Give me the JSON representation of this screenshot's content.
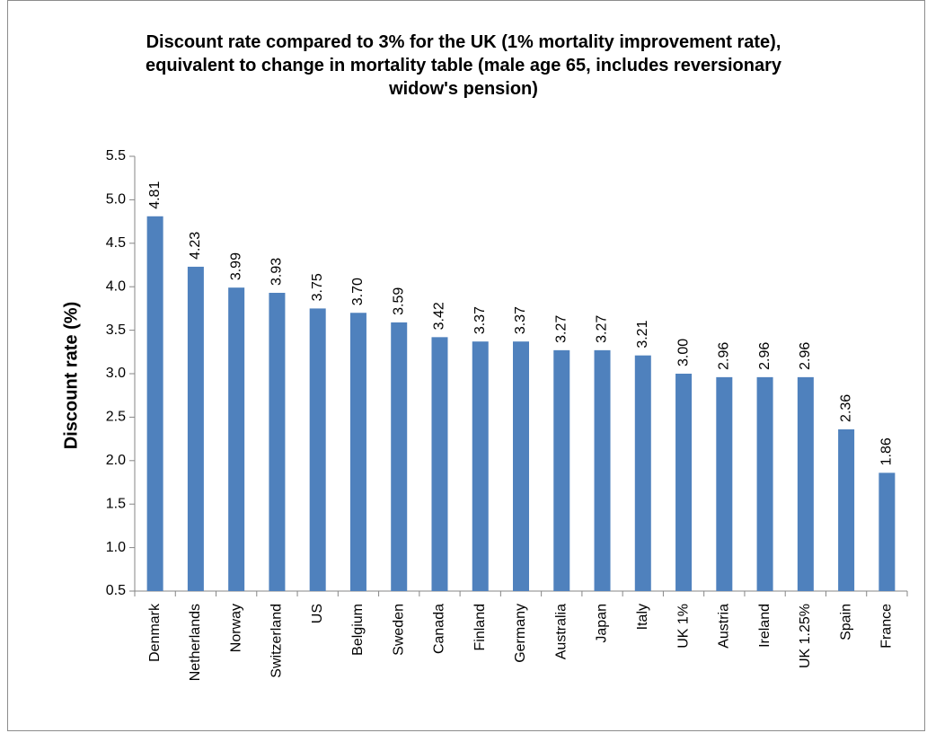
{
  "chart_data": {
    "type": "bar",
    "title_lines": [
      "Discount rate compared to 3% for the UK (1% mortality improvement rate),",
      "equivalent to change in mortality table (male age 65, includes reversionary",
      "widow's pension)"
    ],
    "ylabel": "Discount rate (%)",
    "xlabel": "",
    "ylim": [
      0.5,
      5.5
    ],
    "yticks": [
      "0.5",
      "1.0",
      "1.5",
      "2.0",
      "2.5",
      "3.0",
      "3.5",
      "4.0",
      "4.5",
      "5.0",
      "5.5"
    ],
    "categories": [
      "Denmark",
      "Netherlands",
      "Norway",
      "Switzerland",
      "US",
      "Belgium",
      "Sweden",
      "Canada",
      "Finland",
      "Germany",
      "Australia",
      "Japan",
      "Italy",
      "UK 1%",
      "Austria",
      "Ireland",
      "UK 1.25%",
      "Spain",
      "France"
    ],
    "values": [
      4.81,
      4.23,
      3.99,
      3.93,
      3.75,
      3.7,
      3.59,
      3.42,
      3.37,
      3.37,
      3.27,
      3.27,
      3.21,
      3.0,
      2.96,
      2.96,
      2.96,
      2.36,
      1.86
    ],
    "labels": [
      "4.81",
      "4.23",
      "3.99",
      "3.93",
      "3.75",
      "3.70",
      "3.59",
      "3.42",
      "3.37",
      "3.37",
      "3.27",
      "3.27",
      "3.21",
      "3.00",
      "2.96",
      "2.96",
      "2.96",
      "2.36",
      "1.86"
    ],
    "bar_color": "#4f81bd",
    "grid": false,
    "legend": "none"
  }
}
